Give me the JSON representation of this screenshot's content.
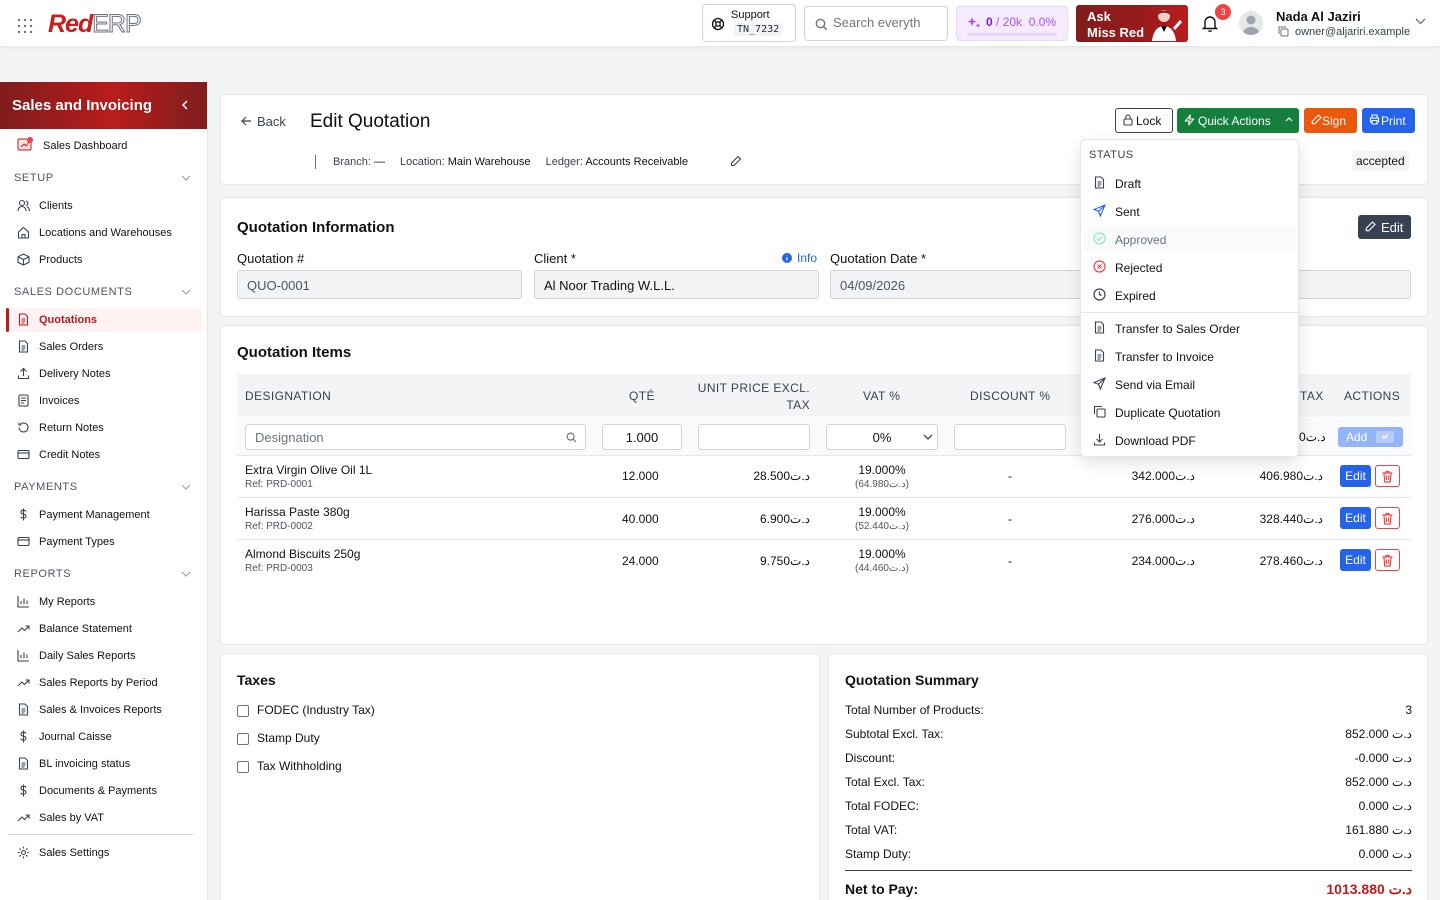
{
  "app": {
    "logo_red": "Red",
    "logo_erp": "ERP"
  },
  "topbar": {
    "support_label": "Support",
    "support_code": "TN_7232",
    "search_placeholder": "Search everyth",
    "credits_used": "0",
    "credits_text": " / 20k",
    "credits_pct": "0.0%",
    "credits_fraction": 0.0,
    "ask_line1": "Ask",
    "ask_line2": "Miss Red",
    "notifications": "3",
    "user_name": "Nada Al Jaziri",
    "user_email": "owner@aljariri.example"
  },
  "sidebar": {
    "title": "Sales and Invoicing",
    "dashboard": "Sales Dashboard",
    "sections": {
      "setup": "SETUP",
      "sales_documents": "SALES DOCUMENTS",
      "payments": "PAYMENTS",
      "reports": "REPORTS"
    },
    "setup_items": [
      "Clients",
      "Locations and Warehouses",
      "Products"
    ],
    "doc_items": [
      "Quotations",
      "Sales Orders",
      "Delivery Notes",
      "Invoices",
      "Return Notes",
      "Credit Notes"
    ],
    "payment_items": [
      "Payment Management",
      "Payment Types"
    ],
    "report_items": [
      "My Reports",
      "Balance Statement",
      "Daily Sales Reports",
      "Sales Reports by Period",
      "Sales & Invoices Reports",
      "Journal Caisse",
      "BL invoicing status",
      "Documents & Payments",
      "Sales by VAT"
    ],
    "settings": "Sales Settings",
    "active": "Quotations"
  },
  "header": {
    "back": "Back",
    "title": "Edit Quotation",
    "branch_label": "Branch:",
    "branch_value": "—",
    "location_label": "Location:",
    "location_value": "Main Warehouse",
    "ledger_label": "Ledger:",
    "ledger_value": "Accounts Receivable",
    "status": "accepted",
    "buttons": {
      "lock": "Lock",
      "quick_actions": "Quick Actions",
      "sign": "Sign",
      "print": "Print"
    }
  },
  "quick_actions_menu": {
    "section": "STATUS",
    "status_items": [
      "Draft",
      "Sent",
      "Approved",
      "Rejected",
      "Expired"
    ],
    "action_items": [
      "Transfer to Sales Order",
      "Transfer to Invoice",
      "Send via Email",
      "Duplicate Quotation",
      "Download PDF"
    ]
  },
  "info": {
    "title": "Quotation Information",
    "edit": "Edit",
    "number_label": "Quotation #",
    "number_value": "QUO-0001",
    "client_label": "Client *",
    "client_info": "Info",
    "client_value": "Al Noor Trading W.L.L.",
    "date_label": "Quotation Date *",
    "date_value": "04/09/2026"
  },
  "items": {
    "title": "Quotation Items",
    "columns": {
      "designation": "DESIGNATION",
      "qty": "QTÉ",
      "unit_price_1": "UNIT PRICE EXCL.",
      "unit_price_2": "TAX",
      "vat": "VAT %",
      "discount": "DISCOUNT %",
      "tax": "TAX",
      "actions": "ACTIONS"
    },
    "new_row": {
      "designation_placeholder": "Designation",
      "qty": "1.000",
      "vat": "0%",
      "total_tax": "0د.ت",
      "add": "Add"
    },
    "rows": [
      {
        "name": "Extra Virgin Olive Oil 1L",
        "ref": "Ref: PRD-0001",
        "qty": "12.000",
        "unit": "28.500د.ت",
        "vat": "19.000%",
        "vat_amt": "(64.980د.ت)",
        "discount": "-",
        "total_excl": "342.000د.ت",
        "total_incl": "406.980د.ت"
      },
      {
        "name": "Harissa Paste 380g",
        "ref": "Ref: PRD-0002",
        "qty": "40.000",
        "unit": "6.900د.ت",
        "vat": "19.000%",
        "vat_amt": "(52.440د.ت)",
        "discount": "-",
        "total_excl": "276.000د.ت",
        "total_incl": "328.440د.ت"
      },
      {
        "name": "Almond Biscuits 250g",
        "ref": "Ref: PRD-0003",
        "qty": "24.000",
        "unit": "9.750د.ت",
        "vat": "19.000%",
        "vat_amt": "(44.460د.ت)",
        "discount": "-",
        "total_excl": "234.000د.ت",
        "total_incl": "278.460د.ت"
      }
    ],
    "edit": "Edit"
  },
  "taxes": {
    "title": "Taxes",
    "options": [
      "FODEC (Industry Tax)",
      "Stamp Duty",
      "Tax Withholding"
    ]
  },
  "summary": {
    "title": "Quotation Summary",
    "rows": [
      {
        "label": "Total Number of Products:",
        "value": "3"
      },
      {
        "label": "Subtotal Excl. Tax:",
        "value": "852.000 د.ت"
      },
      {
        "label": "Discount:",
        "value": "-0.000 د.ت"
      },
      {
        "label": "Total Excl. Tax:",
        "value": "852.000 د.ت"
      },
      {
        "label": "Total FODEC:",
        "value": "0.000 د.ت"
      },
      {
        "label": "Total VAT:",
        "value": "161.880 د.ت"
      },
      {
        "label": "Stamp Duty:",
        "value": "0.000 د.ت"
      }
    ],
    "net_label": "Net to Pay:",
    "net_value": "1013.880 د.ت"
  },
  "colors": {
    "brand": "#b91c1c",
    "primary": "#2563eb",
    "success": "#15803d",
    "warning": "#ea580c",
    "danger": "#ef4444"
  }
}
